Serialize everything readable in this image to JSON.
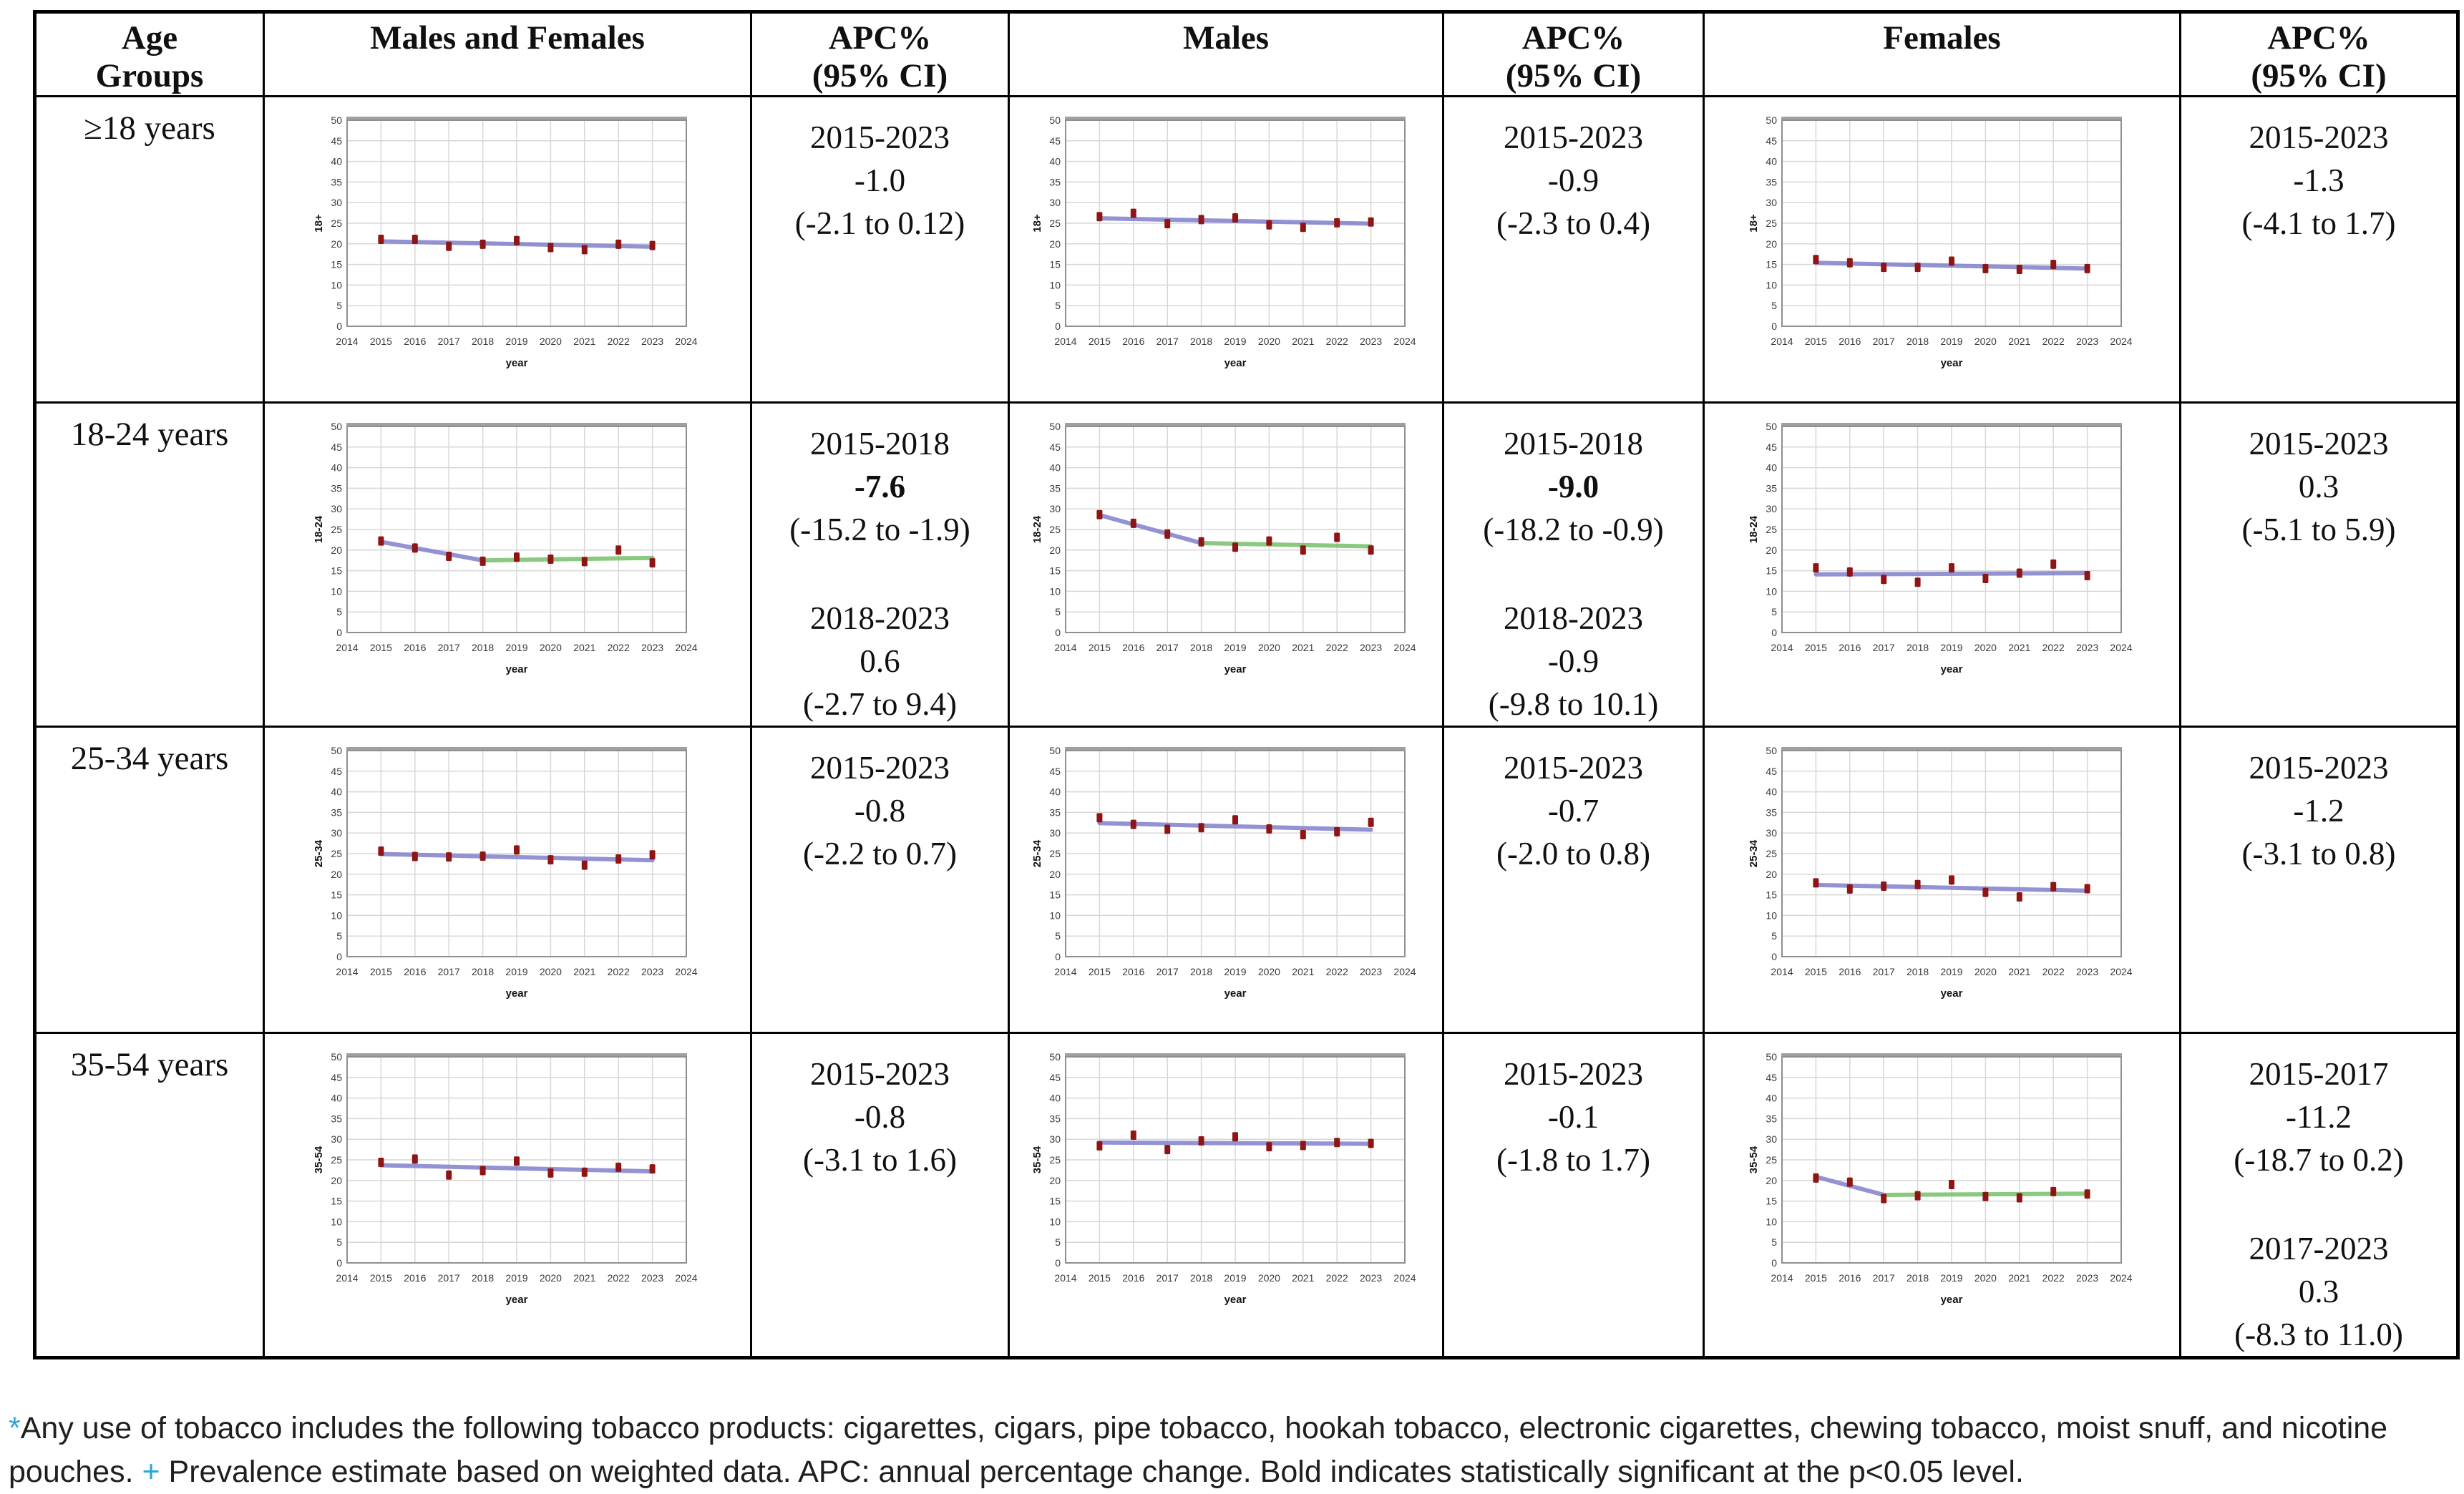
{
  "colors": {
    "marker": "#8f1515",
    "blue": "#8181cd",
    "green": "#77c06a",
    "grid": "#d7d7d7",
    "axis": "#8f8f8f",
    "footnote_accent": "#29a5dd"
  },
  "header": {
    "cells": [
      {
        "lines": [
          "Age",
          "Groups"
        ]
      },
      {
        "lines": [
          "Males and Females"
        ]
      },
      {
        "lines": [
          "APC%",
          "(95% CI)"
        ]
      },
      {
        "lines": [
          "Males"
        ]
      },
      {
        "lines": [
          "APC%",
          "(95% CI)"
        ]
      },
      {
        "lines": [
          "Females"
        ]
      },
      {
        "lines": [
          "APC%",
          "(95% CI)"
        ]
      }
    ]
  },
  "rows": [
    {
      "age_group": "≥18 years",
      "apcs": [
        {
          "segments": [
            {
              "period": "2015-2023",
              "apc": "-1.0",
              "ci": "(-2.1 to 0.12)",
              "bold": false
            }
          ]
        },
        {
          "segments": [
            {
              "period": "2015-2023",
              "apc": "-0.9",
              "ci": "(-2.3 to 0.4)",
              "bold": false
            }
          ]
        },
        {
          "segments": [
            {
              "period": "2015-2023",
              "apc": "-1.3",
              "ci": "(-4.1 to 1.7)",
              "bold": false
            }
          ]
        }
      ]
    },
    {
      "age_group": "18-24 years",
      "apcs": [
        {
          "segments": [
            {
              "period": "2015-2018",
              "apc": "-7.6",
              "ci": "(-15.2 to -1.9)",
              "bold": true
            },
            {
              "period": "2018-2023",
              "apc": "0.6",
              "ci": "(-2.7 to 9.4)",
              "bold": false
            }
          ]
        },
        {
          "segments": [
            {
              "period": "2015-2018",
              "apc": "-9.0",
              "ci": "(-18.2 to -0.9)",
              "bold": true
            },
            {
              "period": "2018-2023",
              "apc": "-0.9",
              "ci": "(-9.8 to 10.1)",
              "bold": false
            }
          ]
        },
        {
          "segments": [
            {
              "period": "2015-2023",
              "apc": "0.3",
              "ci": "(-5.1 to 5.9)",
              "bold": false
            }
          ]
        }
      ]
    },
    {
      "age_group": "25-34 years",
      "apcs": [
        {
          "segments": [
            {
              "period": "2015-2023",
              "apc": "-0.8",
              "ci": "(-2.2 to 0.7)",
              "bold": false
            }
          ]
        },
        {
          "segments": [
            {
              "period": "2015-2023",
              "apc": "-0.7",
              "ci": "(-2.0 to 0.8)",
              "bold": false
            }
          ]
        },
        {
          "segments": [
            {
              "period": "2015-2023",
              "apc": "-1.2",
              "ci": "(-3.1 to 0.8)",
              "bold": false
            }
          ]
        }
      ]
    },
    {
      "age_group": "35-54 years",
      "apcs": [
        {
          "segments": [
            {
              "period": "2015-2023",
              "apc": "-0.8",
              "ci": "(-3.1 to 1.6)",
              "bold": false
            }
          ]
        },
        {
          "segments": [
            {
              "period": "2015-2023",
              "apc": "-0.1",
              "ci": "(-1.8 to 1.7)",
              "bold": false
            }
          ]
        },
        {
          "segments": [
            {
              "period": "2015-2017",
              "apc": "-11.2",
              "ci": "(-18.7 to 0.2)",
              "bold": false
            },
            {
              "period": "2017-2023",
              "apc": "0.3",
              "ci": "(-8.3 to 11.0)",
              "bold": false
            }
          ]
        }
      ]
    }
  ],
  "chart_defaults": {
    "type": "scatter",
    "xlabel": "year",
    "xlim": [
      2014,
      2024
    ],
    "ylim": [
      0,
      50
    ],
    "ystep": 5,
    "x": [
      2015,
      2016,
      2017,
      2018,
      2019,
      2020,
      2021,
      2022,
      2023
    ],
    "grid": true
  },
  "chart_data": [
    {
      "title": "≥18 years - Males and Females",
      "ylabel": "18+",
      "y": [
        21.1,
        21.1,
        19.4,
        19.9,
        20.8,
        19.1,
        18.6,
        19.9,
        19.6
      ],
      "segments": [
        {
          "color": "blue",
          "pts": [
            [
              2015,
              20.6
            ],
            [
              2023,
              19.3
            ]
          ]
        }
      ]
    },
    {
      "title": "≥18 years - Males",
      "ylabel": "18+",
      "y": [
        26.6,
        27.4,
        24.9,
        25.9,
        26.3,
        24.6,
        24.0,
        25.1,
        25.3
      ],
      "segments": [
        {
          "color": "blue",
          "pts": [
            [
              2015,
              26.2
            ],
            [
              2023,
              24.9
            ]
          ]
        }
      ]
    },
    {
      "title": "≥18 years - Females",
      "ylabel": "18+",
      "y": [
        16.2,
        15.4,
        14.3,
        14.3,
        15.8,
        14.0,
        13.8,
        15.0,
        14.0
      ],
      "segments": [
        {
          "color": "blue",
          "pts": [
            [
              2015,
              15.4
            ],
            [
              2023,
              14.0
            ]
          ]
        }
      ]
    },
    {
      "title": "18-24 years - Males and Females",
      "ylabel": "18-24",
      "y": [
        22.2,
        20.5,
        18.5,
        17.3,
        18.3,
        17.8,
        17.2,
        20.0,
        16.9
      ],
      "segments": [
        {
          "color": "blue",
          "pts": [
            [
              2015,
              22.0
            ],
            [
              2018,
              17.5
            ]
          ]
        },
        {
          "color": "green",
          "pts": [
            [
              2018,
              17.5
            ],
            [
              2023,
              18.1
            ]
          ]
        }
      ]
    },
    {
      "title": "18-24 years - Males",
      "ylabel": "18-24",
      "y": [
        28.6,
        26.5,
        23.9,
        22.0,
        20.7,
        22.2,
        20.0,
        23.1,
        20.0
      ],
      "segments": [
        {
          "color": "blue",
          "pts": [
            [
              2015,
              28.5
            ],
            [
              2018,
              21.7
            ]
          ]
        },
        {
          "color": "green",
          "pts": [
            [
              2018,
              21.7
            ],
            [
              2023,
              20.9
            ]
          ]
        }
      ]
    },
    {
      "title": "18-24 years - Females",
      "ylabel": "18-24",
      "y": [
        15.7,
        14.7,
        12.9,
        12.2,
        15.7,
        13.1,
        14.4,
        16.6,
        13.8
      ],
      "segments": [
        {
          "color": "blue",
          "pts": [
            [
              2015,
              14.1
            ],
            [
              2023,
              14.4
            ]
          ]
        }
      ]
    },
    {
      "title": "25-34 years - Males and Females",
      "ylabel": "25-34",
      "y": [
        25.6,
        24.3,
        24.2,
        24.4,
        25.9,
        23.5,
        22.2,
        23.7,
        24.7
      ],
      "segments": [
        {
          "color": "blue",
          "pts": [
            [
              2015,
              24.9
            ],
            [
              2023,
              23.4
            ]
          ]
        }
      ]
    },
    {
      "title": "25-34 years - Males",
      "ylabel": "25-34",
      "y": [
        33.7,
        32.1,
        30.9,
        31.3,
        33.2,
        31.0,
        29.6,
        30.3,
        32.6
      ],
      "segments": [
        {
          "color": "blue",
          "pts": [
            [
              2015,
              32.4
            ],
            [
              2023,
              30.8
            ]
          ]
        }
      ]
    },
    {
      "title": "25-34 years - Females",
      "ylabel": "25-34",
      "y": [
        17.9,
        16.4,
        17.1,
        17.5,
        18.6,
        15.6,
        14.5,
        17.0,
        16.5
      ],
      "segments": [
        {
          "color": "blue",
          "pts": [
            [
              2015,
              17.4
            ],
            [
              2023,
              16.0
            ]
          ]
        }
      ]
    },
    {
      "title": "35-54 years - Males and Females",
      "ylabel": "35-54",
      "y": [
        24.4,
        25.2,
        21.3,
        22.4,
        24.7,
        21.8,
        22.0,
        23.2,
        22.8
      ],
      "segments": [
        {
          "color": "blue",
          "pts": [
            [
              2015,
              23.7
            ],
            [
              2023,
              22.2
            ]
          ]
        }
      ]
    },
    {
      "title": "35-54 years - Males",
      "ylabel": "35-54",
      "y": [
        28.4,
        31.0,
        27.5,
        29.6,
        30.6,
        28.2,
        28.5,
        29.2,
        29.0
      ],
      "segments": [
        {
          "color": "blue",
          "pts": [
            [
              2015,
              29.2
            ],
            [
              2023,
              28.9
            ]
          ]
        }
      ]
    },
    {
      "title": "35-54 years - Females",
      "ylabel": "35-54",
      "y": [
        20.6,
        19.6,
        15.6,
        16.3,
        19.0,
        16.1,
        15.8,
        17.3,
        16.7
      ],
      "segments": [
        {
          "color": "blue",
          "pts": [
            [
              2015,
              20.9
            ],
            [
              2017,
              16.5
            ]
          ]
        },
        {
          "color": "green",
          "pts": [
            [
              2017,
              16.5
            ],
            [
              2023,
              16.8
            ]
          ]
        }
      ]
    }
  ],
  "footnote": {
    "asterisk": "*",
    "part1": "Any use of tobacco includes the following tobacco products: cigarettes, cigars, pipe tobacco, hookah tobacco, electronic cigarettes, chewing tobacco, moist snuff, and nicotine pouches. ",
    "plus": "+",
    "part2": " Prevalence estimate based on weighted data. APC: annual percentage change. Bold indicates statistically significant at the p<0.05 level."
  }
}
